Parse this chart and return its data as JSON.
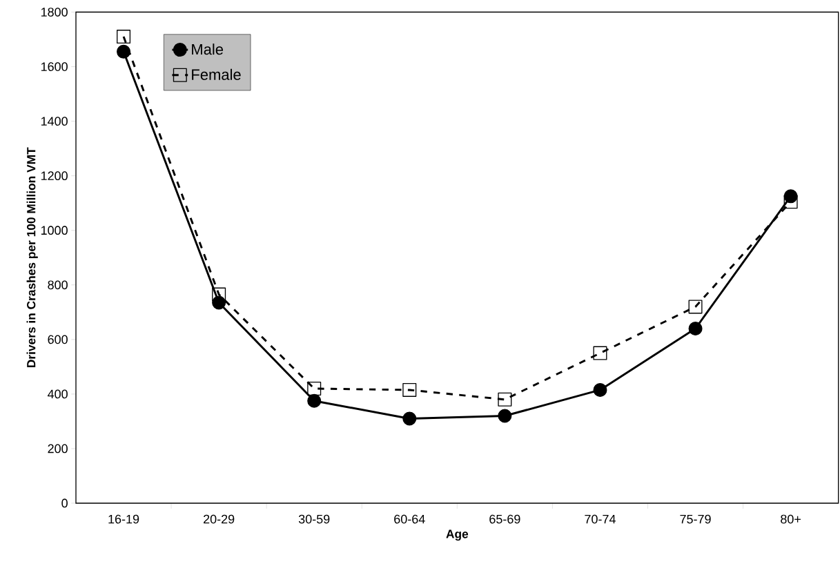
{
  "chart_data": {
    "type": "line",
    "xlabel": "Age",
    "ylabel": "Drivers in Crashes per 100 Million VMT",
    "categories": [
      "16-19",
      "20-29",
      "30-59",
      "60-64",
      "65-69",
      "70-74",
      "75-79",
      "80+"
    ],
    "series": [
      {
        "name": "Male",
        "color": "#000000",
        "marker": "circle",
        "line_style": "solid",
        "values": [
          1655,
          735,
          375,
          310,
          320,
          415,
          640,
          1125
        ]
      },
      {
        "name": "Female",
        "color": "#000000",
        "marker": "square",
        "line_style": "dashed",
        "values": [
          1710,
          765,
          420,
          415,
          380,
          550,
          720,
          1105
        ]
      }
    ],
    "ylim": [
      0,
      1800
    ],
    "yticks": [
      0,
      200,
      400,
      600,
      800,
      1000,
      1200,
      1400,
      1600,
      1800
    ],
    "grid": false,
    "legend": "top left"
  }
}
